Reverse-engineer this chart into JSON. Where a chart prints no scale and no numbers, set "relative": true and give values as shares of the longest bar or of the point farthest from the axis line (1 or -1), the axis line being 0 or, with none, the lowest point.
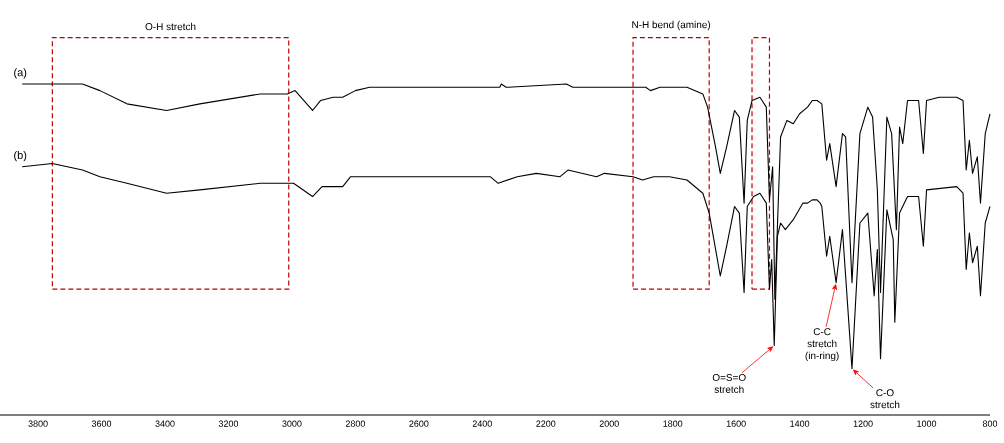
{
  "chart_data": {
    "type": "line",
    "relative": true,
    "xlim": [
      3920,
      800
    ],
    "xticks": [
      3800,
      3600,
      3400,
      3200,
      3000,
      2800,
      2600,
      2400,
      2200,
      2000,
      1800,
      1600,
      1400,
      1200,
      1000,
      800
    ],
    "line_style": "solid",
    "marker": "none",
    "series": [
      {
        "name": "(a)",
        "color": "#000000",
        "x": [
          3850,
          3755,
          3660,
          3605,
          3520,
          3395,
          3290,
          3100,
          3015,
          2990,
          2935,
          2910,
          2870,
          2840,
          2800,
          2755,
          2500,
          2345,
          2340,
          2325,
          2135,
          2115,
          1935,
          1885,
          1870,
          1840,
          1755,
          1705,
          1690,
          1665,
          1650,
          1630,
          1605,
          1590,
          1575,
          1565,
          1550,
          1525,
          1505,
          1495,
          1485,
          1478,
          1460,
          1440,
          1420,
          1400,
          1375,
          1360,
          1345,
          1330,
          1315,
          1305,
          1285,
          1265,
          1255,
          1235,
          1210,
          1185,
          1170,
          1155,
          1145,
          1125,
          1110,
          1095,
          1085,
          1075,
          1060,
          1025,
          1010,
          1000,
          960,
          905,
          885,
          875,
          865,
          855,
          840,
          830,
          815,
          800
        ],
        "values": [
          1.0,
          1.0,
          1.0,
          0.98,
          0.94,
          0.92,
          0.94,
          0.97,
          0.97,
          0.98,
          0.92,
          0.95,
          0.96,
          0.96,
          0.98,
          0.99,
          0.99,
          0.99,
          1.0,
          0.99,
          1.0,
          0.99,
          0.99,
          0.99,
          0.98,
          0.99,
          0.99,
          0.97,
          0.93,
          0.81,
          0.73,
          0.81,
          0.92,
          0.9,
          0.64,
          0.89,
          0.95,
          0.96,
          0.93,
          0.65,
          0.75,
          0.35,
          0.84,
          0.89,
          0.88,
          0.91,
          0.93,
          0.95,
          0.95,
          0.94,
          0.77,
          0.82,
          0.69,
          0.85,
          0.84,
          0.4,
          0.85,
          0.93,
          0.9,
          0.68,
          0.37,
          0.9,
          0.85,
          0.56,
          0.87,
          0.82,
          0.95,
          0.95,
          0.79,
          0.95,
          0.96,
          0.96,
          0.95,
          0.74,
          0.83,
          0.73,
          0.78,
          0.64,
          0.85,
          0.91
        ]
      },
      {
        "name": "(b)",
        "color": "#000000",
        "x": [
          3850,
          3755,
          3660,
          3605,
          3520,
          3395,
          3290,
          3100,
          3015,
          2995,
          2935,
          2905,
          2870,
          2840,
          2815,
          2775,
          2565,
          2375,
          2350,
          2290,
          2230,
          2155,
          2130,
          2040,
          2015,
          1925,
          1895,
          1860,
          1810,
          1755,
          1705,
          1685,
          1650,
          1630,
          1605,
          1590,
          1575,
          1565,
          1545,
          1525,
          1505,
          1495,
          1488,
          1480,
          1470,
          1460,
          1445,
          1420,
          1390,
          1375,
          1360,
          1345,
          1335,
          1330,
          1315,
          1305,
          1285,
          1265,
          1235,
          1210,
          1185,
          1165,
          1155,
          1145,
          1125,
          1105,
          1100,
          1085,
          1060,
          1025,
          1010,
          1000,
          905,
          885,
          875,
          865,
          855,
          840,
          830,
          815,
          800
        ],
        "values": [
          0.75,
          0.76,
          0.74,
          0.72,
          0.7,
          0.67,
          0.68,
          0.7,
          0.7,
          0.7,
          0.66,
          0.69,
          0.69,
          0.69,
          0.72,
          0.72,
          0.72,
          0.72,
          0.7,
          0.72,
          0.73,
          0.72,
          0.74,
          0.72,
          0.73,
          0.72,
          0.71,
          0.72,
          0.72,
          0.71,
          0.67,
          0.61,
          0.42,
          0.51,
          0.63,
          0.61,
          0.37,
          0.63,
          0.66,
          0.67,
          0.64,
          0.38,
          0.47,
          0.21,
          0.54,
          0.58,
          0.56,
          0.59,
          0.64,
          0.64,
          0.65,
          0.65,
          0.64,
          0.63,
          0.48,
          0.54,
          0.4,
          0.56,
          0.14,
          0.58,
          0.61,
          0.36,
          0.5,
          0.17,
          0.62,
          0.53,
          0.28,
          0.61,
          0.66,
          0.66,
          0.51,
          0.68,
          0.69,
          0.67,
          0.44,
          0.55,
          0.46,
          0.51,
          0.36,
          0.58,
          0.63
        ]
      }
    ],
    "bands": [
      {
        "axis": "x",
        "from": 3755,
        "to": 3010,
        "label": "O-H stretch",
        "color": "#c00000"
      },
      {
        "axis": "x",
        "from": 1925,
        "to": 1685,
        "label": "N-H bend (amine)",
        "color": "#c00000"
      },
      {
        "axis": "x",
        "from": 1550,
        "to": 1495,
        "color": "#c00000"
      }
    ],
    "annotations": [
      {
        "text": "O=S=O stretch",
        "x": 1480,
        "y": 0.21
      },
      {
        "text": "C-C stretch (in-ring)",
        "x": 1285,
        "y": 0.4
      },
      {
        "text": "C-O stretch",
        "x": 1235,
        "y": 0.14
      }
    ]
  }
}
